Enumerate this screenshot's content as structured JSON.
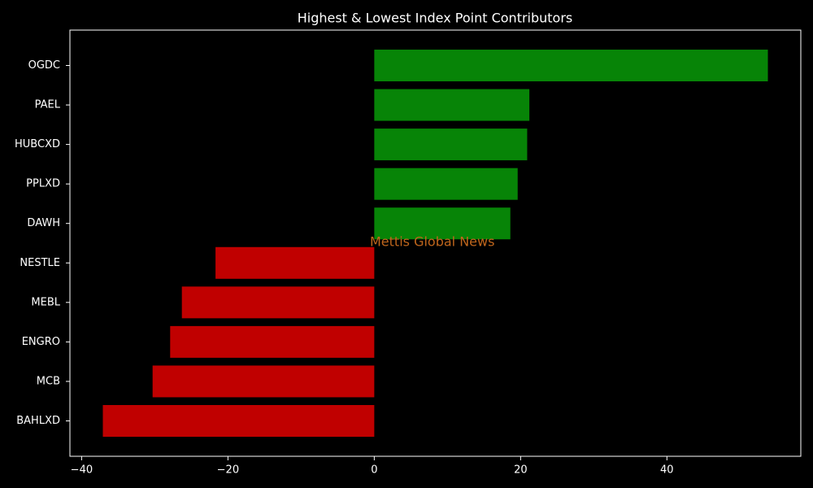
{
  "chart_data": {
    "type": "bar",
    "orientation": "horizontal",
    "title": "Highest & Lowest Index Point Contributors",
    "watermark": "Mettis Global News",
    "categories": [
      "OGDC",
      "PAEL",
      "HUBCXD",
      "PPLXD",
      "DAWH",
      "NESTLE",
      "MEBL",
      "ENGRO",
      "MCB",
      "BAHLXD"
    ],
    "values": [
      53.8,
      21.2,
      20.9,
      19.6,
      18.6,
      -21.7,
      -26.3,
      -27.9,
      -30.3,
      -37.1
    ],
    "colors": [
      "#078407",
      "#078407",
      "#078407",
      "#078407",
      "#078407",
      "#c00000",
      "#c00000",
      "#c00000",
      "#c00000",
      "#c00000"
    ],
    "xlim": [
      -41.6,
      58.3
    ],
    "xticks": [
      {
        "value": -40,
        "label": "−40"
      },
      {
        "value": -20,
        "label": "−20"
      },
      0,
      20,
      40
    ],
    "grid": false
  }
}
